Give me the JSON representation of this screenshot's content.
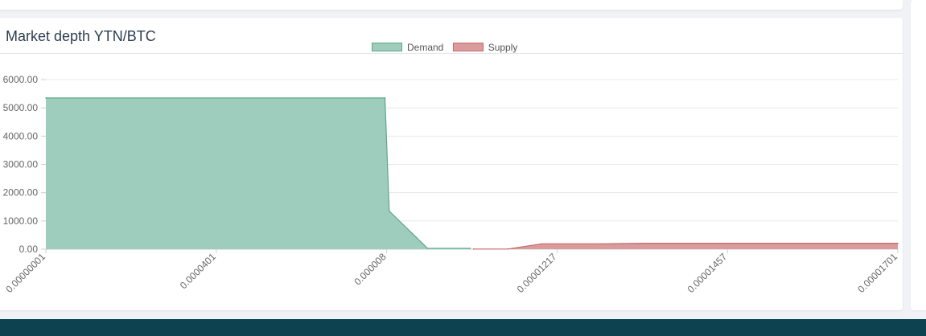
{
  "card": {
    "title": "Market depth YTN/BTC"
  },
  "colors": {
    "demand_fill": "#9fcdbd",
    "demand_line": "#5aa887",
    "supply_fill": "#d99b9b",
    "supply_line": "#c86b6b",
    "footer": "#0d4350"
  },
  "chart_data": {
    "type": "area",
    "title": "Market depth YTN/BTC",
    "xlabel": "",
    "ylabel": "",
    "ylim": [
      0,
      6000
    ],
    "y_ticks": [
      "0.00",
      "1000.00",
      "2000.00",
      "3000.00",
      "4000.00",
      "5000.00",
      "6000.00"
    ],
    "x_tick_labels": [
      "0.00000001",
      "0.0000401",
      "0.000008",
      "0.00001217",
      "0.00001457",
      "0.00001701"
    ],
    "grid": true,
    "legend_position": "top-center",
    "series": [
      {
        "name": "Demand",
        "x": [
          0,
          0.398,
          0.403,
          0.448,
          0.498
        ],
        "values": [
          5350,
          5350,
          1350,
          30,
          30
        ]
      },
      {
        "name": "Supply",
        "x": [
          0.502,
          0.542,
          0.582,
          0.652,
          0.7,
          1.0
        ],
        "values": [
          5,
          5,
          190,
          190,
          210,
          210
        ]
      }
    ]
  }
}
